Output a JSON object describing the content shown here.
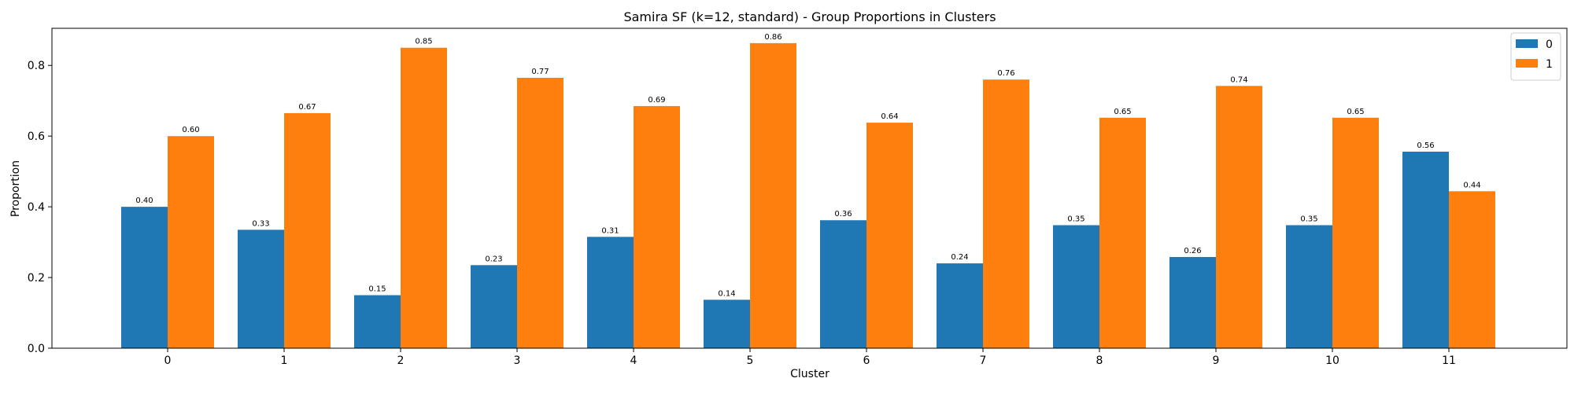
{
  "chart_data": {
    "type": "bar",
    "title": "Samira SF (k=12, standard) - Group Proportions in Clusters",
    "xlabel": "Cluster",
    "ylabel": "Proportion",
    "categories": [
      "0",
      "1",
      "2",
      "3",
      "4",
      "5",
      "6",
      "7",
      "8",
      "9",
      "10",
      "11"
    ],
    "series": [
      {
        "name": "0",
        "color": "#1f77b4",
        "values": [
          0.4,
          0.335,
          0.15,
          0.235,
          0.315,
          0.137,
          0.362,
          0.24,
          0.348,
          0.258,
          0.348,
          0.556
        ],
        "labels": [
          "0.40",
          "0.33",
          "0.15",
          "0.23",
          "0.31",
          "0.14",
          "0.36",
          "0.24",
          "0.35",
          "0.26",
          "0.35",
          "0.56"
        ]
      },
      {
        "name": "1",
        "color": "#ff7f0e",
        "values": [
          0.6,
          0.665,
          0.85,
          0.765,
          0.685,
          0.863,
          0.638,
          0.76,
          0.652,
          0.742,
          0.652,
          0.444
        ],
        "labels": [
          "0.60",
          "0.67",
          "0.85",
          "0.77",
          "0.69",
          "0.86",
          "0.64",
          "0.76",
          "0.65",
          "0.74",
          "0.65",
          "0.44"
        ]
      }
    ],
    "ylim": [
      0,
      0.905
    ],
    "yticks": [
      "0.0",
      "0.2",
      "0.4",
      "0.6",
      "0.8"
    ],
    "grid": false,
    "legend_position": "top-right"
  }
}
